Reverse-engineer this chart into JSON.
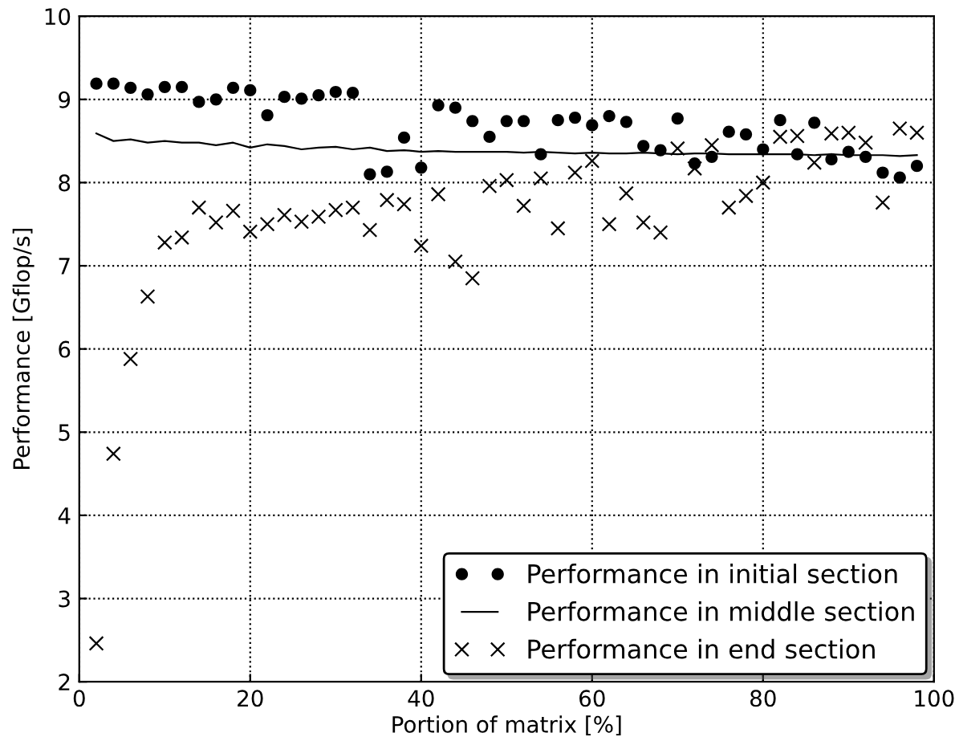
{
  "chart_data": {
    "type": "scatter",
    "xlabel": "Portion of matrix [%]",
    "ylabel": "Performance [Gflop/s]",
    "x": [
      2,
      4,
      6,
      8,
      10,
      12,
      14,
      16,
      18,
      20,
      22,
      24,
      26,
      28,
      30,
      32,
      34,
      36,
      38,
      40,
      42,
      44,
      46,
      48,
      50,
      52,
      54,
      56,
      58,
      60,
      62,
      64,
      66,
      68,
      70,
      72,
      74,
      76,
      78,
      80,
      82,
      84,
      86,
      88,
      90,
      92,
      94,
      96,
      98
    ],
    "series": [
      {
        "name": "Performance in initial section",
        "marker": "circle",
        "color": "#000000",
        "values": [
          9.19,
          9.19,
          9.14,
          9.06,
          9.15,
          9.15,
          8.97,
          9.0,
          9.14,
          9.11,
          8.81,
          9.03,
          9.01,
          9.05,
          9.09,
          9.08,
          8.1,
          8.13,
          8.54,
          8.18,
          8.93,
          8.9,
          8.74,
          8.55,
          8.74,
          8.74,
          8.34,
          8.75,
          8.78,
          8.69,
          8.8,
          8.73,
          8.44,
          8.39,
          8.77,
          8.23,
          8.31,
          8.61,
          8.58,
          8.4,
          8.75,
          8.34,
          8.72,
          8.28,
          8.37,
          8.31,
          8.12,
          8.06,
          8.2
        ]
      },
      {
        "name": "Performance in middle section",
        "type": "line",
        "marker": "none",
        "line_style": "solid",
        "color": "#000000",
        "values": [
          8.59,
          8.5,
          8.52,
          8.48,
          8.5,
          8.48,
          8.48,
          8.45,
          8.48,
          8.42,
          8.46,
          8.44,
          8.4,
          8.42,
          8.43,
          8.4,
          8.42,
          8.38,
          8.39,
          8.37,
          8.38,
          8.37,
          8.37,
          8.37,
          8.37,
          8.36,
          8.37,
          8.36,
          8.35,
          8.36,
          8.35,
          8.35,
          8.36,
          8.35,
          8.34,
          8.35,
          8.35,
          8.34,
          8.34,
          8.34,
          8.34,
          8.34,
          8.33,
          8.34,
          8.33,
          8.33,
          8.33,
          8.32,
          8.33
        ]
      },
      {
        "name": "Performance in end section",
        "marker": "cross",
        "color": "#000000",
        "values": [
          2.46,
          4.74,
          5.88,
          6.63,
          7.28,
          7.34,
          7.7,
          7.52,
          7.66,
          7.41,
          7.5,
          7.61,
          7.53,
          7.59,
          7.67,
          7.7,
          7.43,
          7.79,
          7.74,
          7.24,
          7.86,
          7.05,
          6.85,
          7.96,
          8.03,
          7.72,
          8.05,
          7.45,
          8.12,
          8.26,
          7.5,
          7.87,
          7.52,
          7.4,
          8.41,
          8.17,
          8.45,
          7.7,
          7.84,
          8.0,
          8.55,
          8.56,
          8.24,
          8.59,
          8.6,
          8.48,
          7.76,
          8.65,
          8.6
        ]
      }
    ],
    "xlim": [
      0,
      100
    ],
    "xticks": [
      0,
      20,
      40,
      60,
      80,
      100
    ],
    "ylim": [
      2,
      10
    ],
    "yticks": [
      2,
      3,
      4,
      5,
      6,
      7,
      8,
      9,
      10
    ],
    "grid": true,
    "legend": "bottom right"
  }
}
